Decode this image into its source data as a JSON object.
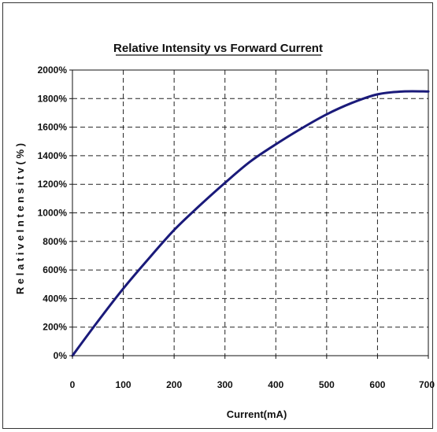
{
  "chart_data": {
    "type": "line",
    "title": "Relative Intensity vs Forward Current",
    "xlabel": "Current(mA)",
    "ylabel": "R e l a t i v e   I n t e n s i t v ( % )",
    "xlim": [
      0,
      700
    ],
    "ylim": [
      0,
      2000
    ],
    "x_ticks": [
      0,
      100,
      200,
      300,
      400,
      500,
      600,
      700
    ],
    "y_ticks": [
      0,
      200,
      400,
      600,
      800,
      1000,
      1200,
      1400,
      1600,
      1800,
      2000
    ],
    "y_tick_labels": [
      "0%",
      "200%",
      "400%",
      "600%",
      "800%",
      "1000%",
      "1200%",
      "1400%",
      "1600%",
      "1800%",
      "2000%"
    ],
    "grid": true,
    "grid_style": "dashed",
    "series": [
      {
        "color": "#1a1a7a",
        "x": [
          0,
          50,
          100,
          150,
          200,
          250,
          300,
          350,
          400,
          450,
          500,
          550,
          600,
          650,
          700
        ],
        "y": [
          0,
          240,
          470,
          680,
          880,
          1050,
          1210,
          1360,
          1480,
          1590,
          1690,
          1770,
          1830,
          1850,
          1850
        ]
      }
    ]
  }
}
